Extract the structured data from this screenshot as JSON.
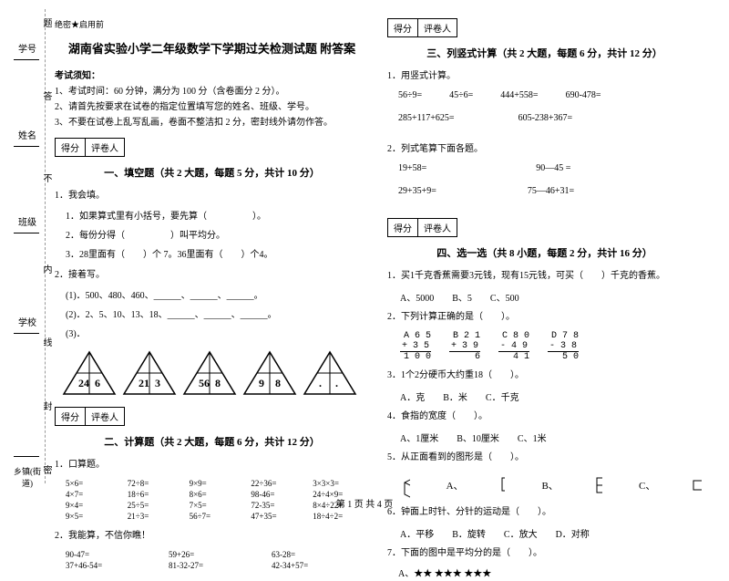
{
  "sideband": {
    "labels": [
      "学号",
      "姓名",
      "班级",
      "学校",
      "乡镇(街道)"
    ],
    "verts": [
      "题",
      "答",
      "不",
      "内",
      "线",
      "封",
      "密"
    ]
  },
  "header": {
    "secret": "绝密★启用前",
    "title": "湖南省实验小学二年级数学下学期过关检测试题 附答案",
    "notice_head": "考试须知：",
    "notices": [
      "1、考试时间：60 分钟，满分为 100 分（含卷面分 2 分）。",
      "2、请首先按要求在试卷的指定位置填写您的姓名、班级、学号。",
      "3、不要在试卷上乱写乱画，卷面不整洁扣 2 分，密封线外请勿作答。"
    ]
  },
  "scorebox": {
    "c1": "得分",
    "c2": "评卷人"
  },
  "sec1": {
    "head": "一、填空题（共 2 大题，每题 5 分，共计 10 分）",
    "q1": "1．我会填。",
    "q1a": "1．如果算式里有小括号，要先算（　　　　　）。",
    "q1b": "2．每份分得（　　　　　）叫平均分。",
    "q1c": "3．28里面有（　　）个 7。36里面有（　　）个4。",
    "q2": "2．接着写。",
    "q2a": "(1)．500、480、460、______、______、______。",
    "q2b": "(2)．2、5、10、13、18、______、______、______。",
    "q2c": "(3)．",
    "tri_values": [
      [
        "24",
        "6"
      ],
      [
        "21",
        "3"
      ],
      [
        "56",
        "8"
      ],
      [
        "9",
        "8"
      ],
      [
        ".",
        "."
      ]
    ]
  },
  "sec2": {
    "head": "二、计算题（共 2 大题，每题 6 分，共计 12 分）",
    "q1": "1．口算题。",
    "rows": [
      [
        "5×6=",
        "72÷8=",
        "9×9=",
        "22÷36=",
        "3×3×3="
      ],
      [
        "4×7=",
        "18÷6=",
        "8×6=",
        "98-46=",
        "24÷4×9="
      ],
      [
        "9×4=",
        "25÷5=",
        "7×5=",
        "72-35=",
        "8×4÷22="
      ],
      [
        "9×5=",
        "21÷3=",
        "56÷7=",
        "47+35=",
        "18÷4÷2="
      ]
    ],
    "q2": "2．我能算，不信你瞧！",
    "rows2": [
      [
        "90-47=",
        "59+26=",
        "63-28="
      ],
      [
        "37+46-54=",
        "81-32-27=",
        "42-34+57="
      ]
    ]
  },
  "sec3": {
    "head": "三、列竖式计算（共 2 大题，每题 6 分，共计 12 分）",
    "q1": "1．用竖式计算。",
    "row1": [
      "56÷9=",
      "45÷6=",
      "444+558=",
      "690-478="
    ],
    "row2": [
      "285+117+625=",
      "605-238+367="
    ],
    "q2": "2．列式笔算下面各题。",
    "rowsB": [
      [
        "19+58=",
        "90—45 ="
      ],
      [
        "29+35+9=",
        "75—46+31="
      ]
    ]
  },
  "sec4": {
    "head": "四、选一选（共 8 小题，每题 2 分，共计 16 分）",
    "q1": "1．买1千克香蕉需要3元钱，现有15元钱，可买（　　）千克的香蕉。",
    "q1opts": [
      "A、5000",
      "B、5",
      "C、500"
    ],
    "q2": "2．下列计算正确的是（　　）。",
    "arith": [
      {
        "h": "A  6 5",
        "m": "+ 3 5",
        "r": "1 0 0"
      },
      {
        "h": "B  2 1",
        "m": "+ 3 9",
        "r": "  6  "
      },
      {
        "h": "C  8 0",
        "m": "- 4 9",
        "r": " 4 1 "
      },
      {
        "h": "D  7 8",
        "m": "- 3 8",
        "r": " 5 0 "
      }
    ],
    "q3": "3．1个2分硬币大约重18（　　）。",
    "q3opts": [
      "A．克",
      "B．米",
      "C．千克"
    ],
    "q4": "4．食指的宽度（　　）。",
    "q4opts": [
      "A、1厘米",
      "B、10厘米",
      "C、1米"
    ],
    "q5": "5．从正面看到的图形是（　　）。",
    "q5opts": [
      "A、",
      "B、",
      "C、"
    ],
    "q6": "6．钟面上时针、分针的运动是（　　）。",
    "q6opts": [
      "A．平移",
      "B．旋转",
      "C．放大",
      "D．对称"
    ],
    "q7": "7．下面的图中是平均分的是（　　）。",
    "q7a": "A、★★ ★★★ ★★★"
  },
  "footer": "第 1 页 共 4 页"
}
